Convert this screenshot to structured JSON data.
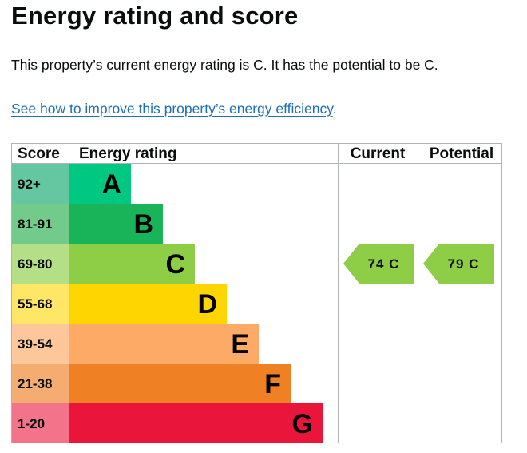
{
  "page": {
    "title": "Energy rating and score",
    "summary": "This property’s current energy rating is C. It has the potential to be C.",
    "link_text": "See how to improve this property’s energy efficiency",
    "link_suffix": "."
  },
  "chart_data": {
    "type": "table",
    "headers": {
      "score": "Score",
      "rating": "Energy rating",
      "current": "Current",
      "potential": "Potential"
    },
    "bands": [
      {
        "score": "92+",
        "letter": "A",
        "color": "#00c781",
        "score_color": "#64c7a2"
      },
      {
        "score": "81-91",
        "letter": "B",
        "color": "#19b459",
        "score_color": "#72ca8b"
      },
      {
        "score": "69-80",
        "letter": "C",
        "color": "#8dce46",
        "score_color": "#b4df86"
      },
      {
        "score": "55-68",
        "letter": "D",
        "color": "#ffd500",
        "score_color": "#ffe666"
      },
      {
        "score": "39-54",
        "letter": "E",
        "color": "#fcaa65",
        "score_color": "#fdc79b"
      },
      {
        "score": "21-38",
        "letter": "F",
        "color": "#ef8023",
        "score_color": "#f4ac70"
      },
      {
        "score": "1-20",
        "letter": "G",
        "color": "#e9153b",
        "score_color": "#f2738a"
      }
    ],
    "current": {
      "value": 74,
      "band": "C",
      "label": "74  C",
      "color": "#8dce46"
    },
    "potential": {
      "value": 79,
      "band": "C",
      "label": "79  C",
      "color": "#8dce46"
    }
  }
}
